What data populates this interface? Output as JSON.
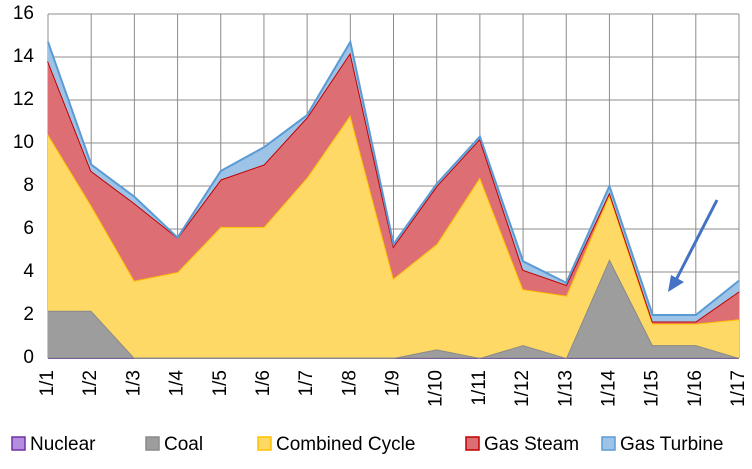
{
  "chart_data": {
    "type": "area",
    "stacked": true,
    "categories": [
      "1/1",
      "1/2",
      "1/3",
      "1/4",
      "1/5",
      "1/6",
      "1/7",
      "1/8",
      "1/9",
      "1/10",
      "1/11",
      "1/12",
      "1/13",
      "1/14",
      "1/15",
      "1/16",
      "1/17"
    ],
    "series": [
      {
        "name": "Nuclear",
        "color": "#b38ee0",
        "edge_color": "#7030a0",
        "values": [
          0,
          0,
          0,
          0,
          0,
          0,
          0,
          0,
          0,
          0,
          0,
          0,
          0,
          0,
          0,
          0,
          0
        ]
      },
      {
        "name": "Coal",
        "color": "#9d9d9d",
        "edge_color": "#8a8a8a",
        "values": [
          2.2,
          2.2,
          0,
          0,
          0,
          0,
          0,
          0,
          0,
          0.4,
          0,
          0.6,
          0,
          4.6,
          0.6,
          0.6,
          0
        ]
      },
      {
        "name": "Combined Cycle",
        "color": "#ffd966",
        "edge_color": "#ffc000",
        "values": [
          8.2,
          4.9,
          3.6,
          4.0,
          6.1,
          6.1,
          8.4,
          11.3,
          3.7,
          4.9,
          8.4,
          2.6,
          2.9,
          3.0,
          1.0,
          1.0,
          1.8
        ]
      },
      {
        "name": "Gas Steam",
        "color": "#dc6e74",
        "edge_color": "#c00000",
        "values": [
          3.4,
          1.6,
          3.6,
          1.6,
          2.2,
          2.9,
          2.8,
          2.9,
          1.5,
          2.7,
          1.8,
          0.9,
          0.5,
          0.1,
          0.1,
          0.1,
          1.3
        ]
      },
      {
        "name": "Gas Turbine",
        "color": "#9dc3e6",
        "edge_color": "#5b9bd5",
        "values": [
          0.9,
          0.3,
          0.3,
          0,
          0.4,
          0.8,
          0.1,
          0.5,
          0.1,
          0.1,
          0.1,
          0.4,
          0.1,
          0.3,
          0.3,
          0.3,
          0.5
        ]
      }
    ],
    "ylim": [
      0,
      16
    ],
    "yticks": [
      0,
      2,
      4,
      6,
      8,
      10,
      12,
      14,
      16
    ],
    "grid": true,
    "legend": "bottom"
  }
}
